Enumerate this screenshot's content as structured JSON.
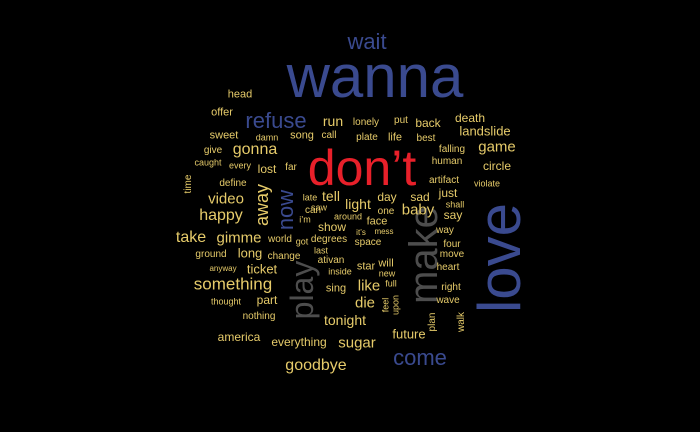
{
  "colors": {
    "background": "#000000",
    "large": "#3a4a8f",
    "highlight": "#e8202a",
    "medium": "#e6cb6a",
    "gray": "#4d4d4d"
  },
  "words": [
    {
      "text": "wanna",
      "color": "large"
    },
    {
      "text": "don’t",
      "color": "highlight"
    },
    {
      "text": "love",
      "color": "large"
    },
    {
      "text": "make",
      "color": "gray"
    },
    {
      "text": "play",
      "color": "gray"
    },
    {
      "text": "wait",
      "color": "large"
    },
    {
      "text": "refuse",
      "color": "large"
    },
    {
      "text": "come",
      "color": "large"
    },
    {
      "text": "now",
      "color": "large"
    },
    {
      "text": "away",
      "color": "medium"
    },
    {
      "text": "something",
      "color": "medium"
    },
    {
      "text": "goodbye",
      "color": "medium"
    },
    {
      "text": "gonna",
      "color": "medium"
    },
    {
      "text": "happy",
      "color": "medium"
    },
    {
      "text": "take",
      "color": "medium"
    },
    {
      "text": "gimme",
      "color": "medium"
    },
    {
      "text": "video",
      "color": "medium"
    },
    {
      "text": "baby",
      "color": "medium"
    },
    {
      "text": "game",
      "color": "medium"
    },
    {
      "text": "landslide",
      "color": "medium"
    },
    {
      "text": "like",
      "color": "medium"
    },
    {
      "text": "die",
      "color": "medium"
    },
    {
      "text": "sugar",
      "color": "medium"
    },
    {
      "text": "tonight",
      "color": "medium"
    },
    {
      "text": "future",
      "color": "medium"
    },
    {
      "text": "run",
      "color": "medium"
    },
    {
      "text": "tell",
      "color": "medium"
    },
    {
      "text": "light",
      "color": "medium"
    },
    {
      "text": "ticket",
      "color": "medium"
    },
    {
      "text": "long",
      "color": "medium"
    },
    {
      "text": "death",
      "color": "medium"
    },
    {
      "text": "back",
      "color": "medium"
    },
    {
      "text": "circle",
      "color": "medium"
    },
    {
      "text": "show",
      "color": "medium"
    },
    {
      "text": "day",
      "color": "medium"
    },
    {
      "text": "sad",
      "color": "medium"
    },
    {
      "text": "just",
      "color": "medium"
    },
    {
      "text": "say",
      "color": "medium"
    },
    {
      "text": "lost",
      "color": "medium"
    },
    {
      "text": "head",
      "color": "medium"
    },
    {
      "text": "offer",
      "color": "medium"
    },
    {
      "text": "sweet",
      "color": "medium"
    },
    {
      "text": "song",
      "color": "medium"
    },
    {
      "text": "call",
      "color": "medium"
    },
    {
      "text": "lonely",
      "color": "medium"
    },
    {
      "text": "put",
      "color": "medium"
    },
    {
      "text": "plate",
      "color": "medium"
    },
    {
      "text": "life",
      "color": "medium"
    },
    {
      "text": "best",
      "color": "medium"
    },
    {
      "text": "damn",
      "color": "medium"
    },
    {
      "text": "give",
      "color": "medium"
    },
    {
      "text": "falling",
      "color": "medium"
    },
    {
      "text": "caught",
      "color": "medium"
    },
    {
      "text": "every",
      "color": "medium"
    },
    {
      "text": "far",
      "color": "medium"
    },
    {
      "text": "human",
      "color": "medium"
    },
    {
      "text": "artifact",
      "color": "medium"
    },
    {
      "text": "violate",
      "color": "medium"
    },
    {
      "text": "time",
      "color": "medium"
    },
    {
      "text": "define",
      "color": "medium"
    },
    {
      "text": "late",
      "color": "medium"
    },
    {
      "text": "saw",
      "color": "medium"
    },
    {
      "text": "can",
      "color": "medium"
    },
    {
      "text": "one",
      "color": "medium"
    },
    {
      "text": "shall",
      "color": "medium"
    },
    {
      "text": "i’m",
      "color": "medium"
    },
    {
      "text": "around",
      "color": "medium"
    },
    {
      "text": "face",
      "color": "medium"
    },
    {
      "text": "way",
      "color": "medium"
    },
    {
      "text": "world",
      "color": "medium"
    },
    {
      "text": "got",
      "color": "medium"
    },
    {
      "text": "degrees",
      "color": "medium"
    },
    {
      "text": "it’s",
      "color": "medium"
    },
    {
      "text": "mess",
      "color": "medium"
    },
    {
      "text": "space",
      "color": "medium"
    },
    {
      "text": "four",
      "color": "medium"
    },
    {
      "text": "ground",
      "color": "medium"
    },
    {
      "text": "change",
      "color": "medium"
    },
    {
      "text": "last",
      "color": "medium"
    },
    {
      "text": "move",
      "color": "medium"
    },
    {
      "text": "ativan",
      "color": "medium"
    },
    {
      "text": "anyway",
      "color": "medium"
    },
    {
      "text": "inside",
      "color": "medium"
    },
    {
      "text": "star",
      "color": "medium"
    },
    {
      "text": "will",
      "color": "medium"
    },
    {
      "text": "new",
      "color": "medium"
    },
    {
      "text": "heart",
      "color": "medium"
    },
    {
      "text": "full",
      "color": "medium"
    },
    {
      "text": "sing",
      "color": "medium"
    },
    {
      "text": "right",
      "color": "medium"
    },
    {
      "text": "thought",
      "color": "medium"
    },
    {
      "text": "part",
      "color": "medium"
    },
    {
      "text": "feel",
      "color": "medium"
    },
    {
      "text": "upon",
      "color": "medium"
    },
    {
      "text": "wave",
      "color": "medium"
    },
    {
      "text": "plan",
      "color": "medium"
    },
    {
      "text": "walk",
      "color": "medium"
    },
    {
      "text": "nothing",
      "color": "medium"
    },
    {
      "text": "america",
      "color": "medium"
    },
    {
      "text": "everything",
      "color": "medium"
    }
  ]
}
